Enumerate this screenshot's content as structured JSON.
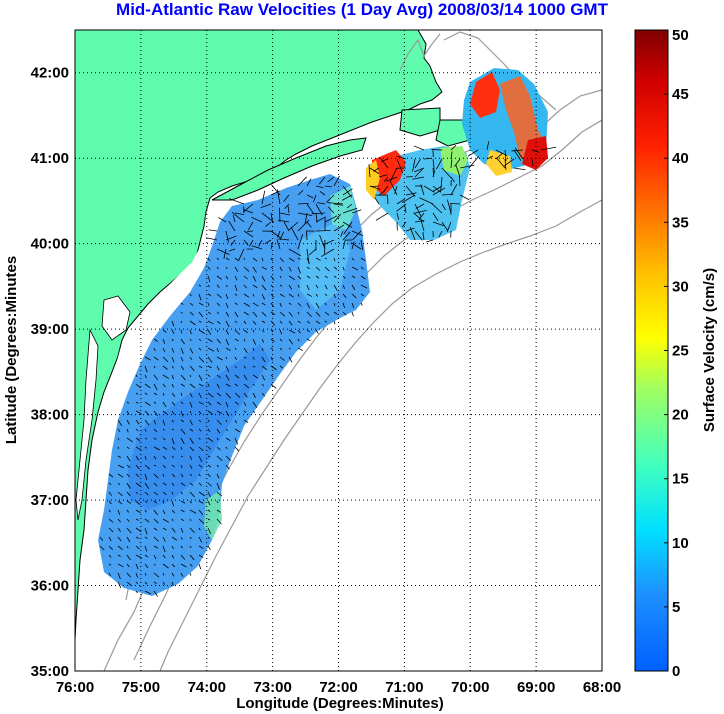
{
  "title": "Mid-Atlantic Raw Velocities (1 Day Avg) 2008/03/14 1000 GMT",
  "chart_data": {
    "type": "map",
    "xlabel": "Longitude (Degrees:Minutes)",
    "ylabel": "Latitude (Degrees:Minutes",
    "xlim": [
      -76,
      -68
    ],
    "ylim": [
      35,
      42.5
    ],
    "x_ticks": [
      {
        "value": -76,
        "label": "76:00"
      },
      {
        "value": -75,
        "label": "75:00"
      },
      {
        "value": -74,
        "label": "74:00"
      },
      {
        "value": -73,
        "label": "73:00"
      },
      {
        "value": -72,
        "label": "72:00"
      },
      {
        "value": -71,
        "label": "71:00"
      },
      {
        "value": -70,
        "label": "70:00"
      },
      {
        "value": -69,
        "label": "69:00"
      },
      {
        "value": -68,
        "label": "68:00"
      }
    ],
    "y_ticks": [
      {
        "value": 35,
        "label": "35:00"
      },
      {
        "value": 36,
        "label": "36:00"
      },
      {
        "value": 37,
        "label": "37:00"
      },
      {
        "value": 38,
        "label": "38:00"
      },
      {
        "value": 39,
        "label": "39:00"
      },
      {
        "value": 40,
        "label": "40:00"
      },
      {
        "value": 41,
        "label": "41:00"
      },
      {
        "value": 42,
        "label": "42:00"
      }
    ],
    "grid": "dotted",
    "colorbar": {
      "label": "Surface Velocity (cm/s)",
      "range": [
        0,
        50
      ],
      "ticks": [
        0,
        5,
        10,
        15,
        20,
        25,
        30,
        35,
        40,
        45,
        50
      ],
      "colormap": "jet"
    },
    "colors": {
      "land": "#5ffcae",
      "water": "#ffffff",
      "bathymetry": "#999999",
      "coastline": "#000000",
      "title": "#0000ff"
    }
  }
}
